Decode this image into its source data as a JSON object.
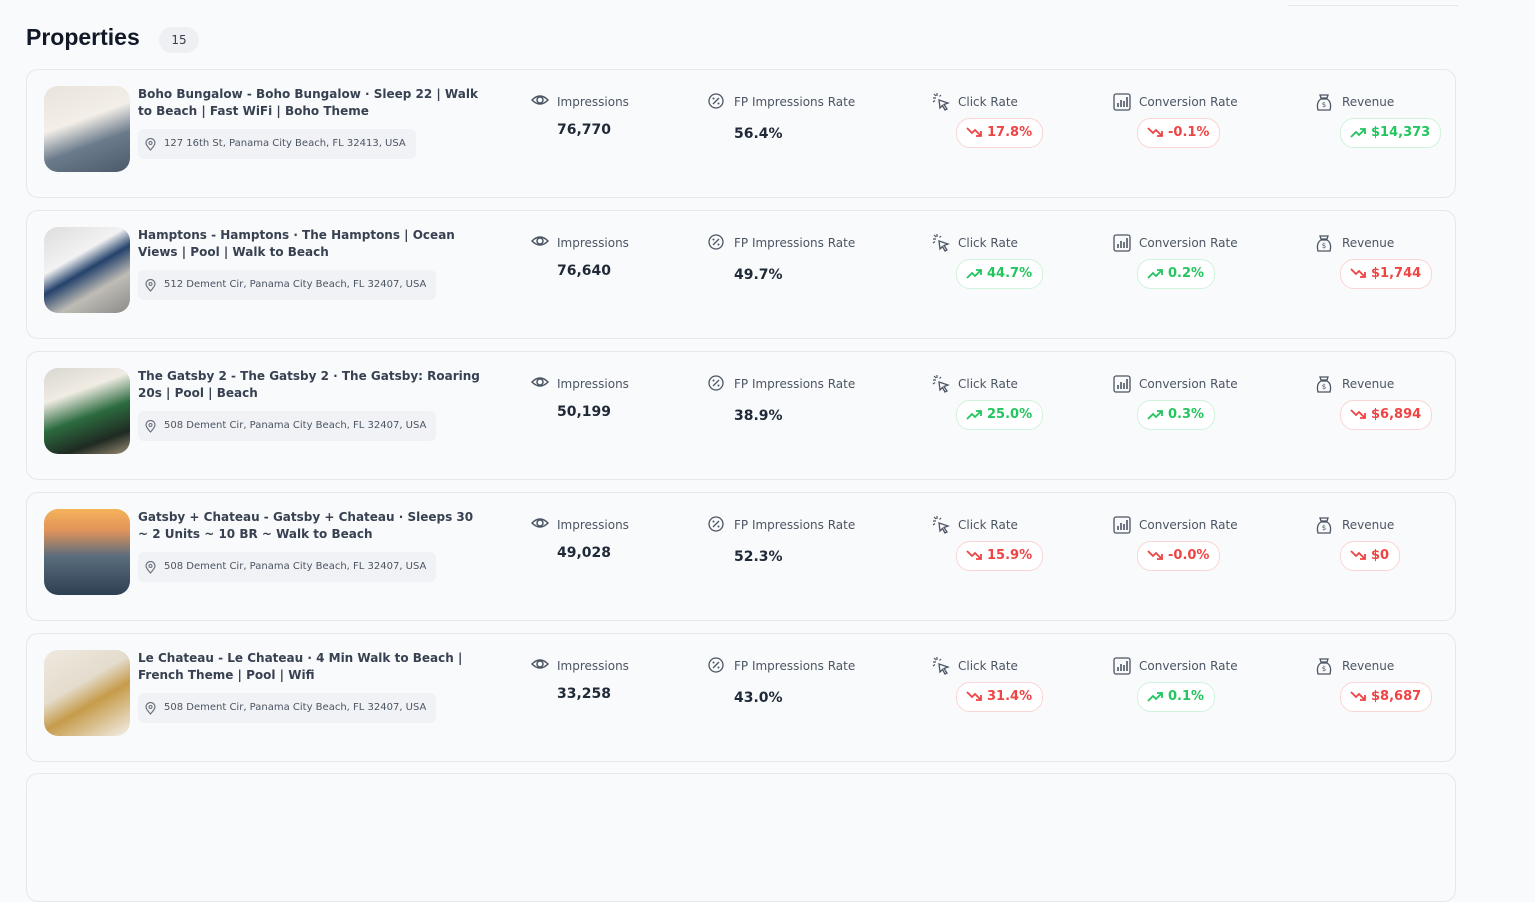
{
  "header": {
    "title": "Properties",
    "count": "15"
  },
  "metric_labels": [
    "Impressions",
    "FP Impressions Rate",
    "Click Rate",
    "Conversion Rate",
    "Revenue"
  ],
  "properties": [
    {
      "name": "Boho Bungalow - Boho Bungalow · Sleep 22 | Walk to Beach | Fast WiFi | Boho Theme",
      "address": "127 16th St, Panama City Beach, FL 32413, USA",
      "impressions": "76,770",
      "fp_rate": "56.4%",
      "click_rate": {
        "value": "17.8%",
        "trend": "down"
      },
      "conversion_rate": {
        "value": "-0.1%",
        "trend": "down"
      },
      "revenue": {
        "value": "$14,373",
        "trend": "up"
      }
    },
    {
      "name": "Hamptons - Hamptons · The Hamptons | Ocean Views | Pool | Walk to Beach",
      "address": "512 Dement Cir, Panama City Beach, FL 32407, USA",
      "impressions": "76,640",
      "fp_rate": "49.7%",
      "click_rate": {
        "value": "44.7%",
        "trend": "up"
      },
      "conversion_rate": {
        "value": "0.2%",
        "trend": "up"
      },
      "revenue": {
        "value": "$1,744",
        "trend": "down"
      }
    },
    {
      "name": "The Gatsby 2 - The Gatsby 2 · The Gatsby: Roaring 20s | Pool | Beach",
      "address": "508 Dement Cir, Panama City Beach, FL 32407, USA",
      "impressions": "50,199",
      "fp_rate": "38.9%",
      "click_rate": {
        "value": "25.0%",
        "trend": "up"
      },
      "conversion_rate": {
        "value": "0.3%",
        "trend": "up"
      },
      "revenue": {
        "value": "$6,894",
        "trend": "down"
      }
    },
    {
      "name": "Gatsby + Chateau - Gatsby + Chateau · Sleeps 30 ~ 2 Units ~ 10 BR ~ Walk to Beach",
      "address": "508 Dement Cir, Panama City Beach, FL 32407, USA",
      "impressions": "49,028",
      "fp_rate": "52.3%",
      "click_rate": {
        "value": "15.9%",
        "trend": "down"
      },
      "conversion_rate": {
        "value": "-0.0%",
        "trend": "down"
      },
      "revenue": {
        "value": "$0",
        "trend": "down"
      }
    },
    {
      "name": "Le Chateau - Le Chateau · 4 Min Walk to Beach | French Theme | Pool | Wifi",
      "address": "508 Dement Cir, Panama City Beach, FL 32407, USA",
      "impressions": "33,258",
      "fp_rate": "43.0%",
      "click_rate": {
        "value": "31.4%",
        "trend": "down"
      },
      "conversion_rate": {
        "value": "0.1%",
        "trend": "up"
      },
      "revenue": {
        "value": "$8,687",
        "trend": "down"
      }
    }
  ]
}
